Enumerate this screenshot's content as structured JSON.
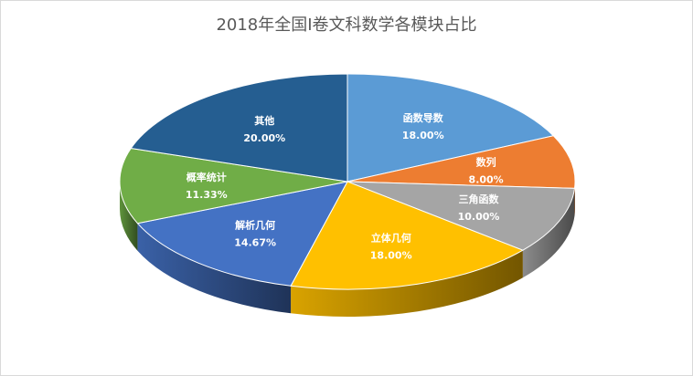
{
  "chart_data": {
    "type": "pie",
    "style": "3d",
    "title": "2018年全国I卷文科数学各模块占比",
    "slices": [
      {
        "label": "函数导数",
        "value": 18.0,
        "display": "18.00%",
        "color": "#5B9BD5"
      },
      {
        "label": "数列",
        "value": 8.0,
        "display": "8.00%",
        "color": "#ED7D31"
      },
      {
        "label": "三角函数",
        "value": 10.0,
        "display": "10.00%",
        "color": "#A5A5A5"
      },
      {
        "label": "立体几何",
        "value": 18.0,
        "display": "18.00%",
        "color": "#FFC000"
      },
      {
        "label": "解析几何",
        "value": 14.67,
        "display": "14.67%",
        "color": "#4472C4"
      },
      {
        "label": "概率统计",
        "value": 11.33,
        "display": "11.33%",
        "color": "#70AD47"
      },
      {
        "label": "其他",
        "value": 20.0,
        "display": "20.00%",
        "color": "#255E91"
      }
    ],
    "legend": "none",
    "data_labels": "inside"
  }
}
